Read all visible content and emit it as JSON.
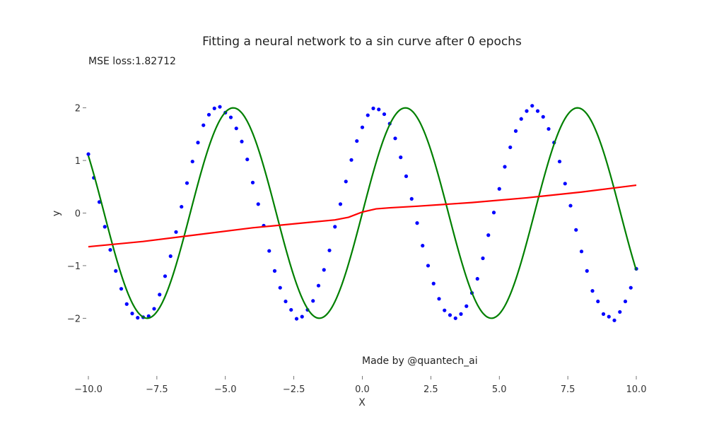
{
  "chart_data": {
    "type": "scatter",
    "title": "Fitting a neural network to a sin curve after 0 epochs",
    "xlabel": "X",
    "ylabel": "y",
    "xlim": [
      -10,
      10
    ],
    "ylim": [
      -2.6,
      2.6
    ],
    "xticks": [
      -10,
      -7.5,
      -5,
      -2.5,
      0,
      2.5,
      5,
      7.5,
      10
    ],
    "xtick_labels": [
      "−10.0",
      "−7.5",
      "−5.0",
      "−2.5",
      "0.0",
      "2.5",
      "5.0",
      "7.5",
      "10.0"
    ],
    "yticks": [
      2,
      1,
      0,
      -1,
      -2
    ],
    "ytick_labels": [
      "2",
      "1",
      "0",
      "−1",
      "−2"
    ],
    "annotations": {
      "loss": "MSE loss:1.82712",
      "credit": "Made by @quantech_ai"
    },
    "grid": false,
    "series": [
      {
        "kind": "scatter",
        "color": "#0000ff",
        "x": [
          -10,
          -9.8,
          -9.6,
          -9.4,
          -9.2,
          -9,
          -8.8,
          -8.6,
          -8.4,
          -8.2,
          -8,
          -7.8,
          -7.6,
          -7.4,
          -7.2,
          -7,
          -6.8,
          -6.6,
          -6.4,
          -6.2,
          -6,
          -5.8,
          -5.6,
          -5.4,
          -5.2,
          -5,
          -4.8,
          -4.6,
          -4.4,
          -4.2,
          -4,
          -3.8,
          -3.6,
          -3.4,
          -3.2,
          -3,
          -2.8,
          -2.6,
          -2.4,
          -2.2,
          -2,
          -1.8,
          -1.6,
          -1.4,
          -1.2,
          -1,
          -0.8,
          -0.6,
          -0.4,
          -0.2,
          0,
          0.2,
          0.4,
          0.6,
          0.8,
          1,
          1.2,
          1.4,
          1.6,
          1.8,
          2,
          2.2,
          2.4,
          2.6,
          2.8,
          3,
          3.2,
          3.4,
          3.6,
          3.8,
          4,
          4.2,
          4.4,
          4.6,
          4.8,
          5,
          5.2,
          5.4,
          5.6,
          5.8,
          6,
          6.2,
          6.4,
          6.6,
          6.8,
          7,
          7.2,
          7.4,
          7.6,
          7.8,
          8,
          8.2,
          8.4,
          8.6,
          8.8,
          9,
          9.2,
          9.4,
          9.6,
          9.8,
          10
        ],
        "y": [
          1.12,
          0.67,
          0.21,
          -0.26,
          -0.7,
          -1.1,
          -1.44,
          -1.73,
          -1.91,
          -1.99,
          -1.98,
          -1.96,
          -1.82,
          -1.55,
          -1.2,
          -0.82,
          -0.36,
          0.12,
          0.57,
          0.98,
          1.34,
          1.67,
          1.87,
          1.99,
          2.02,
          1.91,
          1.82,
          1.61,
          1.36,
          1.02,
          0.58,
          0.17,
          -0.24,
          -0.72,
          -1.1,
          -1.42,
          -1.68,
          -1.84,
          -2.01,
          -1.97,
          -1.84,
          -1.67,
          -1.38,
          -1.08,
          -0.71,
          -0.26,
          0.17,
          0.6,
          1.01,
          1.37,
          1.63,
          1.86,
          1.99,
          1.97,
          1.88,
          1.7,
          1.42,
          1.06,
          0.7,
          0.27,
          -0.19,
          -0.62,
          -1.0,
          -1.34,
          -1.63,
          -1.85,
          -1.94,
          -2.0,
          -1.92,
          -1.77,
          -1.52,
          -1.25,
          -0.86,
          -0.42,
          0.01,
          0.46,
          0.88,
          1.25,
          1.56,
          1.79,
          1.94,
          2.04,
          1.94,
          1.83,
          1.6,
          1.34,
          0.98,
          0.56,
          0.14,
          -0.32,
          -0.73,
          -1.1,
          -1.48,
          -1.68,
          -1.92,
          -1.97,
          -2.04,
          -1.88,
          -1.68,
          -1.42,
          -1.06
        ]
      },
      {
        "kind": "line",
        "color": "#008000",
        "function": "2*sin(x)",
        "x": [
          -10,
          -9.5,
          -9,
          -8.5,
          -8,
          -7.5,
          -7,
          -6.5,
          -6,
          -5.5,
          -5,
          -4.5,
          -4,
          -3.5,
          -3,
          -2.5,
          -2,
          -1.5,
          -1,
          -0.5,
          0,
          0.5,
          1,
          1.5,
          2,
          2.5,
          3,
          3.5,
          4,
          4.5,
          5,
          5.5,
          6,
          6.5,
          7,
          7.5,
          8,
          8.5,
          9,
          9.5,
          10
        ],
        "y": [
          1.088,
          0.15,
          -0.824,
          -1.596,
          -1.979,
          -1.876,
          -1.314,
          -0.43,
          0.559,
          1.411,
          1.918,
          1.955,
          1.514,
          0.702,
          -0.282,
          -1.197,
          -1.819,
          -1.995,
          -1.683,
          -0.959,
          0,
          0.959,
          1.683,
          1.995,
          1.819,
          1.197,
          0.282,
          -0.702,
          -1.514,
          -1.955,
          -1.918,
          -1.411,
          -0.559,
          0.43,
          1.314,
          1.876,
          1.979,
          1.596,
          0.824,
          -0.15,
          -1.088
        ]
      },
      {
        "kind": "line",
        "color": "#ff0000",
        "x": [
          -10,
          -8,
          -6,
          -4,
          -2,
          -1,
          -0.5,
          0,
          0.5,
          1,
          2,
          4,
          6,
          8,
          10
        ],
        "y": [
          -0.64,
          -0.54,
          -0.41,
          -0.28,
          -0.18,
          -0.13,
          -0.08,
          0.02,
          0.08,
          0.1,
          0.13,
          0.2,
          0.29,
          0.4,
          0.53
        ]
      }
    ]
  }
}
